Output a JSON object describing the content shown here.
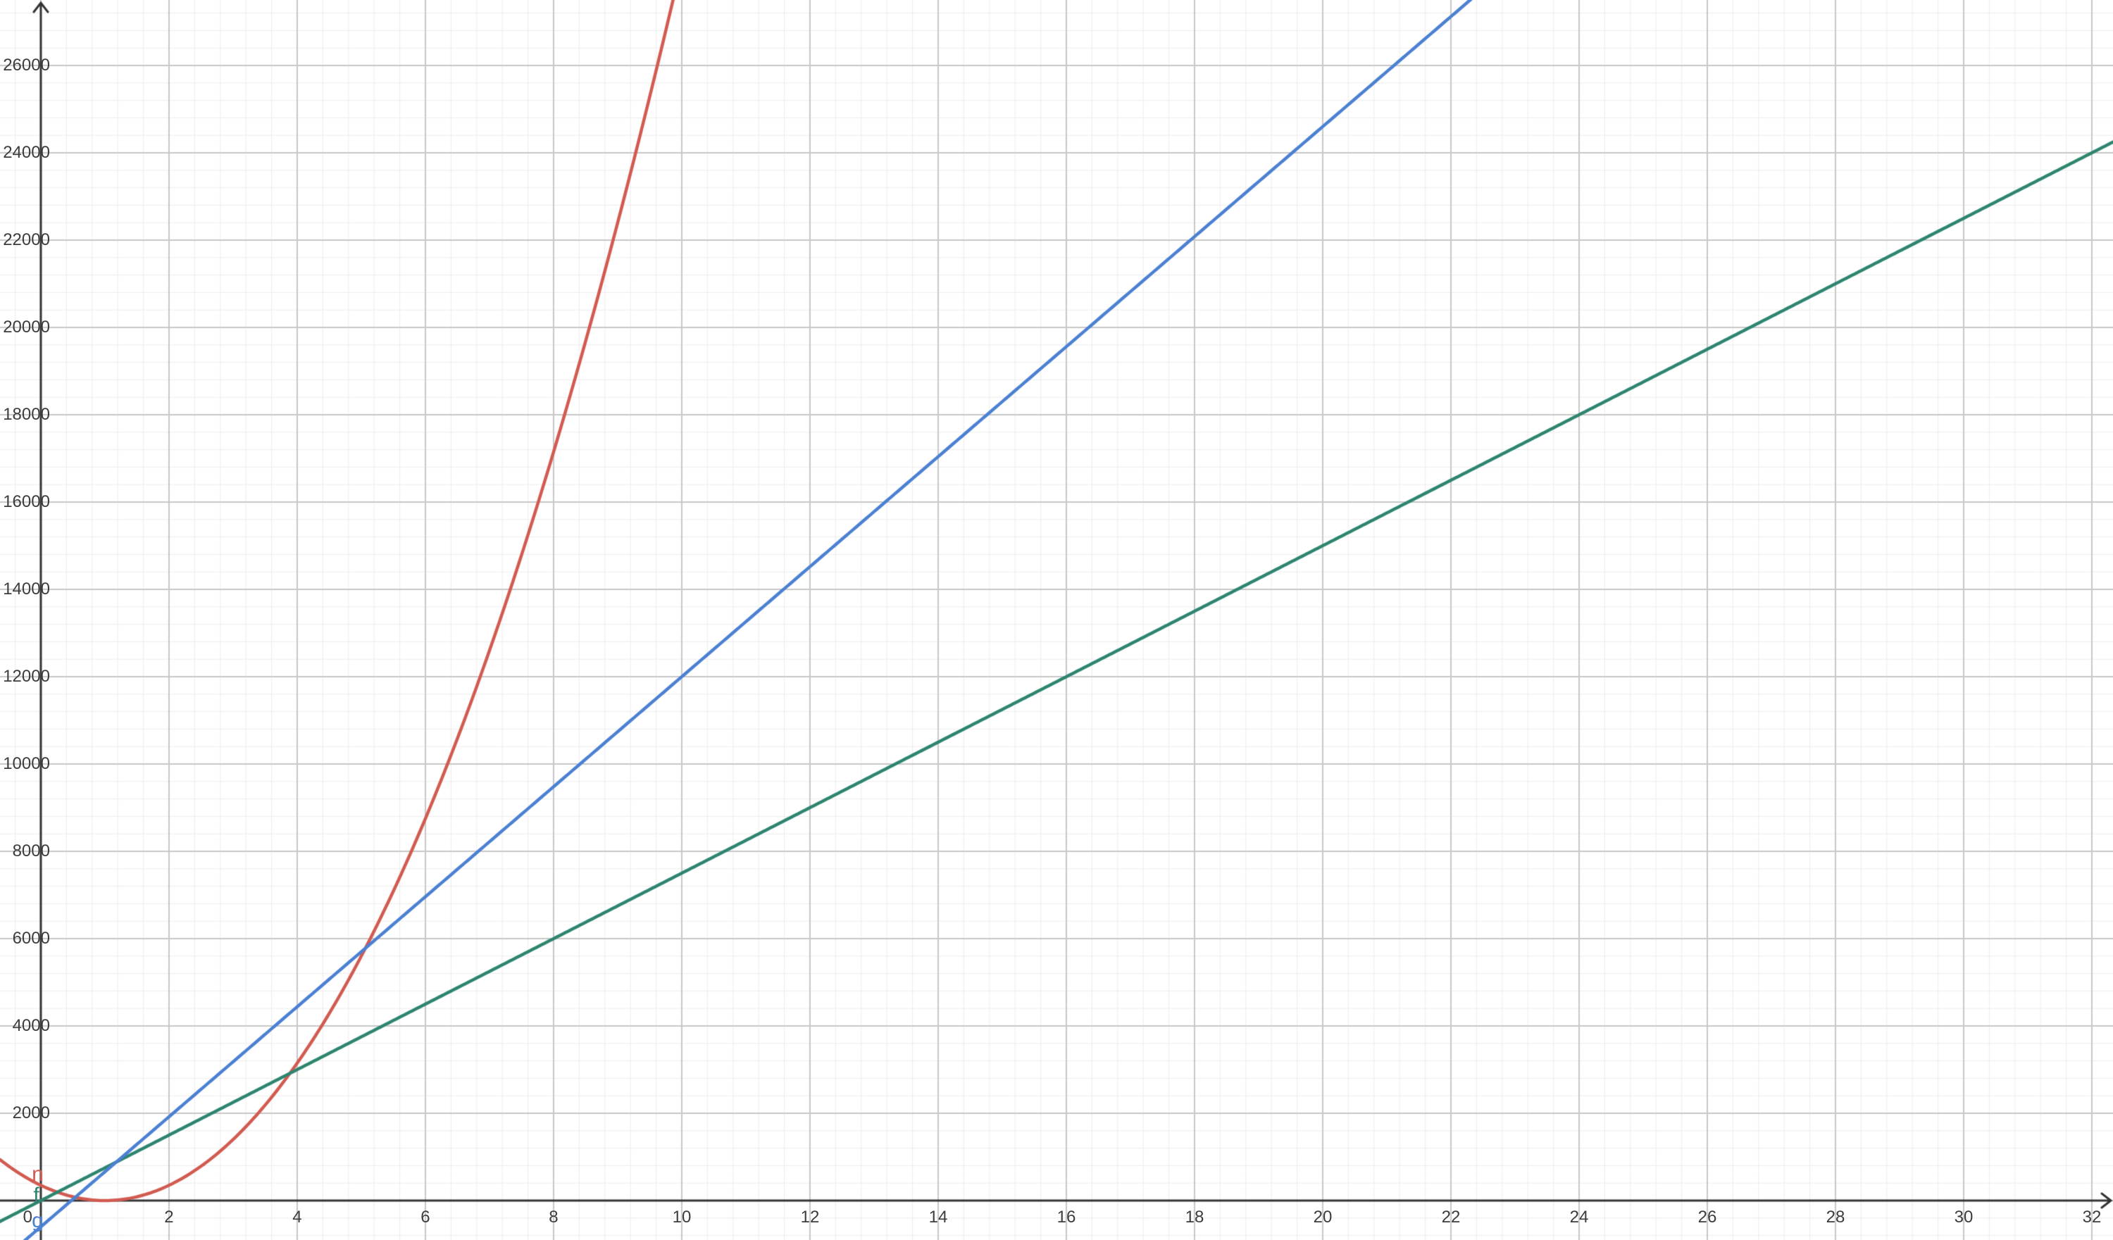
{
  "chart_data": {
    "type": "line",
    "title": "",
    "description": "GeoGebra-style graphing view with three labeled function curves on a light grid",
    "axes": {
      "xmin": -0.637,
      "xmax": 32.33,
      "ymin": -903,
      "ymax": 27500,
      "x_major_step": 2,
      "x_minor_step": 0.4,
      "y_major_step": 2000,
      "y_minor_step": 400,
      "grid": true,
      "x_tick_labels": [
        0,
        2,
        4,
        6,
        8,
        10,
        12,
        14,
        16,
        18,
        20,
        22,
        24,
        26,
        28,
        30,
        32
      ],
      "y_tick_labels": [
        2000,
        4000,
        6000,
        8000,
        10000,
        12000,
        14000,
        16000,
        18000,
        20000,
        22000,
        24000,
        26000
      ]
    },
    "series": [
      {
        "name": "n",
        "color": "#d25b51",
        "type": "quadratic",
        "equation": "n(x) = 350(x - 1)^2",
        "coefficients": {
          "a": 350,
          "b": -700,
          "c": 350
        },
        "key_points": [
          [
            0,
            350
          ],
          [
            1,
            0
          ],
          [
            3,
            1400
          ],
          [
            5.14,
            6000
          ],
          [
            9.62,
            26000
          ]
        ],
        "label_pos": {
          "x": -0.05,
          "y": 600
        }
      },
      {
        "name": "f",
        "color": "#2d8570",
        "type": "linear",
        "equation": "f(x) = 750x",
        "coefficients": {
          "a": 0,
          "b": 750,
          "c": 0
        },
        "key_points": [
          [
            0,
            0
          ],
          [
            4,
            3000
          ],
          [
            8,
            6000
          ],
          [
            16,
            12000
          ],
          [
            24,
            18000
          ],
          [
            32,
            24000
          ]
        ],
        "label_pos": {
          "x": -0.07,
          "y": 110
        }
      },
      {
        "name": "g",
        "color": "#4b80d2",
        "type": "linear",
        "equation": "g(x) = 1260x - 600",
        "coefficients": {
          "a": 0,
          "b": 1260,
          "c": -600
        },
        "key_points": [
          [
            0,
            -600
          ],
          [
            0.48,
            0
          ],
          [
            10,
            12000
          ],
          [
            19.52,
            24000
          ],
          [
            21.11,
            26000
          ]
        ],
        "label_pos": {
          "x": -0.05,
          "y": -470
        }
      }
    ],
    "intersections": [
      {
        "curves": [
          "f",
          "g"
        ],
        "x": 1.18,
        "y": 882
      },
      {
        "curves": [
          "n",
          "f"
        ],
        "x": 3.89,
        "y": 2914
      },
      {
        "curves": [
          "n",
          "g"
        ],
        "x": 5.06,
        "y": 5781
      }
    ],
    "style": {
      "background": "#ffffff",
      "minor_grid_color": "#ededed",
      "major_grid_color": "#c8c8c8",
      "axis_color": "#333333",
      "tick_label_color": "#3d3d3d",
      "curve_stroke_width": 4.5
    }
  }
}
